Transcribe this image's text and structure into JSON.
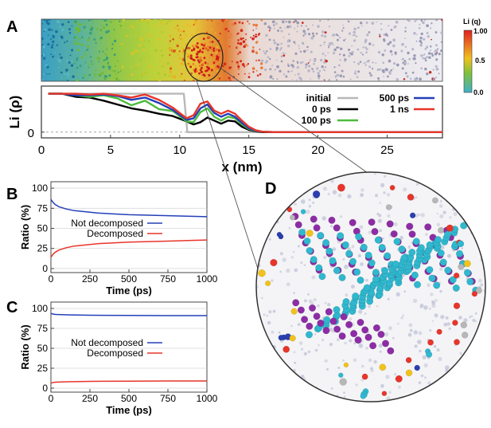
{
  "figure": {
    "panels": {
      "A": "A",
      "B": "B",
      "C": "C",
      "D": "D"
    },
    "colorbar": {
      "label": "Li (q)",
      "ticks": [
        "1.00",
        "0.5",
        "0.0"
      ],
      "colors": [
        "#e02020",
        "#f0c020",
        "#7cc040",
        "#3fb0c8"
      ]
    },
    "atom_colors": [
      "#2fb8cf",
      "#8e2ca6",
      "#e8352a",
      "#f2c21c",
      "#2a3fb0",
      "#b7b7b7",
      "#c8c8d8"
    ]
  },
  "chart_data": [
    {
      "id": "A_density",
      "type": "line",
      "title": "",
      "xlabel": "x (nm)",
      "ylabel": "Li (ρ)",
      "xlim": [
        0,
        29
      ],
      "ylim": [
        -0.15,
        1.2
      ],
      "xticks": [
        0,
        5,
        10,
        15,
        20,
        25
      ],
      "yticks": [
        {
          "value": 0,
          "label": "0"
        }
      ],
      "legend": [
        "initial",
        "0 ps",
        "100 ps",
        "500 ps",
        "1 ns"
      ],
      "series": [
        {
          "name": "initial",
          "color": "#b8b8b8",
          "x": [
            0.5,
            10.3,
            10.55,
            29
          ],
          "y": [
            1.0,
            1.0,
            0.0,
            0.0
          ]
        },
        {
          "name": "0 ps",
          "color": "#000000",
          "x": [
            0.5,
            1.5,
            2.5,
            3.5,
            4.5,
            5.5,
            6.5,
            7.5,
            8.5,
            9.5,
            10.5,
            11.0,
            11.5,
            12.0,
            12.5,
            13.0,
            13.5,
            14.0,
            14.5,
            15.0,
            15.5,
            16.0,
            17.0,
            29
          ],
          "y": [
            1.0,
            1.0,
            0.92,
            0.9,
            0.82,
            0.72,
            0.62,
            0.56,
            0.48,
            0.42,
            0.28,
            0.2,
            0.26,
            0.38,
            0.3,
            0.22,
            0.3,
            0.28,
            0.14,
            0.06,
            0.02,
            0.0,
            0.0,
            0.0
          ]
        },
        {
          "name": "100 ps",
          "color": "#4cbb3a",
          "x": [
            0.5,
            1.5,
            2.5,
            3.5,
            4.5,
            5.5,
            6.5,
            7.5,
            8.5,
            9.5,
            10.5,
            11.0,
            11.5,
            12.0,
            12.5,
            13.0,
            13.5,
            14.0,
            14.5,
            15.0,
            15.5,
            16.0,
            17.0,
            29
          ],
          "y": [
            1.0,
            1.0,
            0.96,
            0.92,
            0.96,
            0.88,
            0.7,
            0.82,
            0.6,
            0.55,
            0.28,
            0.26,
            0.52,
            0.62,
            0.4,
            0.3,
            0.4,
            0.36,
            0.2,
            0.08,
            0.03,
            0.01,
            0.0,
            0.0
          ]
        },
        {
          "name": "500 ps",
          "color": "#2340b8",
          "x": [
            0.5,
            1.5,
            2.5,
            3.5,
            4.5,
            5.5,
            6.5,
            7.5,
            8.5,
            9.5,
            10.5,
            11.0,
            11.5,
            12.0,
            12.5,
            13.0,
            13.5,
            14.0,
            14.5,
            15.0,
            15.5,
            16.0,
            17.0,
            29
          ],
          "y": [
            1.0,
            1.0,
            0.96,
            0.96,
            0.98,
            0.94,
            0.84,
            0.9,
            0.76,
            0.58,
            0.32,
            0.36,
            0.62,
            0.72,
            0.5,
            0.4,
            0.48,
            0.4,
            0.24,
            0.1,
            0.04,
            0.01,
            0.0,
            0.0
          ]
        },
        {
          "name": "1 ns",
          "color": "#e8352a",
          "x": [
            0.5,
            1.5,
            2.5,
            3.5,
            4.5,
            5.5,
            6.5,
            7.5,
            8.5,
            9.5,
            10.5,
            11.0,
            11.5,
            12.0,
            12.5,
            13.0,
            13.5,
            14.0,
            14.5,
            15.0,
            15.5,
            16.0,
            17.0,
            29
          ],
          "y": [
            1.0,
            1.0,
            1.0,
            0.98,
            1.0,
            0.96,
            0.9,
            0.98,
            0.84,
            0.64,
            0.36,
            0.44,
            0.74,
            0.8,
            0.56,
            0.48,
            0.56,
            0.48,
            0.3,
            0.14,
            0.05,
            0.01,
            0.0,
            0.0
          ]
        }
      ]
    },
    {
      "id": "B_ratio",
      "type": "line",
      "xlabel": "Time (ps)",
      "ylabel": "Ratio (%)",
      "xlim": [
        0,
        1000
      ],
      "ylim": [
        -5,
        108
      ],
      "xticks": [
        0,
        250,
        500,
        750,
        1000
      ],
      "yticks": [
        0,
        25,
        50,
        75,
        100
      ],
      "legend": [
        "Not decomposed",
        "Decomposed"
      ],
      "series": [
        {
          "name": "Not decomposed",
          "color": "#2340b8",
          "x": [
            0,
            10,
            25,
            50,
            100,
            150,
            200,
            300,
            400,
            500,
            600,
            700,
            800,
            900,
            1000
          ],
          "y": [
            86,
            83,
            80,
            77,
            74,
            72,
            71,
            69,
            68,
            67,
            66.5,
            66,
            65.5,
            65,
            64.5
          ]
        },
        {
          "name": "Decomposed",
          "color": "#e8352a",
          "x": [
            0,
            10,
            25,
            50,
            100,
            150,
            200,
            300,
            400,
            500,
            600,
            700,
            800,
            900,
            1000
          ],
          "y": [
            14,
            17,
            20,
            23,
            26,
            28,
            29,
            31,
            32,
            33,
            33.5,
            34,
            34.5,
            35,
            35.5
          ]
        }
      ]
    },
    {
      "id": "C_ratio",
      "type": "line",
      "xlabel": "Time (ps)",
      "ylabel": "Ratio (%)",
      "xlim": [
        0,
        1000
      ],
      "ylim": [
        -5,
        108
      ],
      "xticks": [
        0,
        250,
        500,
        750,
        1000
      ],
      "yticks": [
        0,
        25,
        50,
        75,
        100
      ],
      "legend": [
        "Not decomposed",
        "Decomposed"
      ],
      "series": [
        {
          "name": "Not decomposed",
          "color": "#2340b8",
          "x": [
            0,
            10,
            30,
            100,
            250,
            500,
            750,
            1000
          ],
          "y": [
            94,
            93,
            92.5,
            92,
            91.5,
            91.2,
            91,
            91
          ]
        },
        {
          "name": "Decomposed",
          "color": "#e8352a",
          "x": [
            0,
            10,
            30,
            100,
            250,
            500,
            750,
            1000
          ],
          "y": [
            6,
            7,
            7.5,
            8,
            8.5,
            8.8,
            9,
            9
          ]
        }
      ]
    }
  ]
}
